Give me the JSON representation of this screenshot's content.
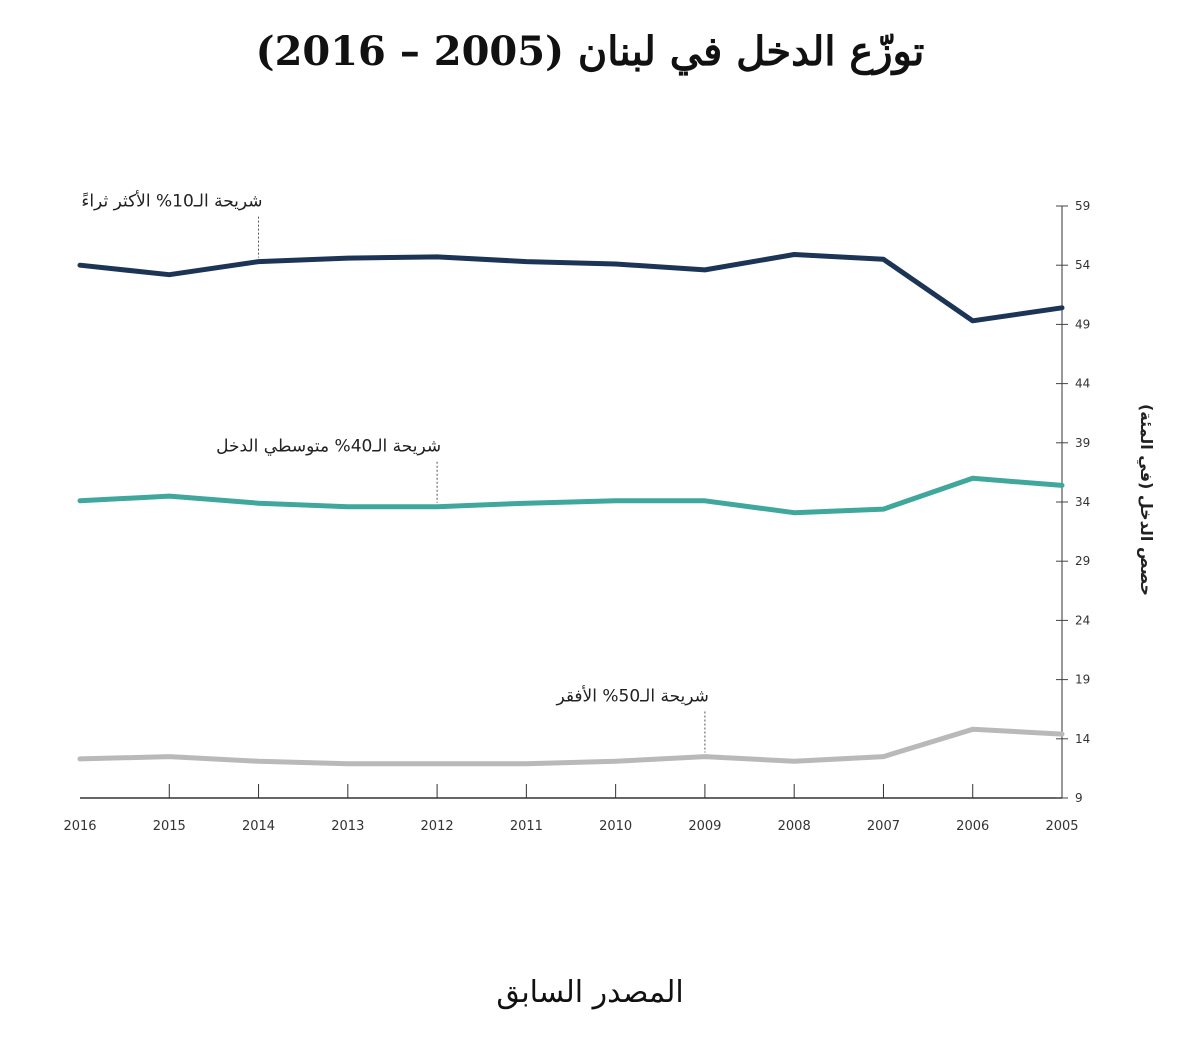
{
  "title": "توزّع الدخل في لبنان (2005 – 2016)",
  "footer": "المصدر السابق",
  "chart_data": {
    "type": "line",
    "x": [
      2016,
      2015,
      2014,
      2013,
      2012,
      2011,
      2010,
      2009,
      2008,
      2007,
      2006,
      2005
    ],
    "xlabel": "",
    "ylabel": "حصص الدخل (في المئة)",
    "ylim": [
      9,
      59
    ],
    "yticks": [
      9,
      14,
      19,
      24,
      29,
      34,
      39,
      44,
      49,
      54,
      59
    ],
    "y_axis_side": "right",
    "grid": false,
    "series": [
      {
        "name": "شريحة الـ10% الأكثر ثراءً",
        "label_at": 2014,
        "color": "#1c3456",
        "values": [
          54.0,
          53.2,
          54.3,
          54.6,
          54.7,
          54.3,
          54.1,
          53.6,
          54.9,
          54.5,
          49.3,
          50.4
        ]
      },
      {
        "name": "شريحة الـ40% متوسطي الدخل",
        "label_at": 2012,
        "color": "#3fa79c",
        "values": [
          34.1,
          34.5,
          33.9,
          33.6,
          33.6,
          33.9,
          34.1,
          34.1,
          33.1,
          33.4,
          36.0,
          35.4
        ]
      },
      {
        "name": "شريحة الـ50% الأفقر",
        "label_at": 2009,
        "color": "#b9b9b9",
        "values": [
          12.3,
          12.5,
          12.1,
          11.9,
          11.9,
          11.9,
          12.1,
          12.5,
          12.1,
          12.5,
          14.8,
          14.4
        ]
      }
    ]
  }
}
